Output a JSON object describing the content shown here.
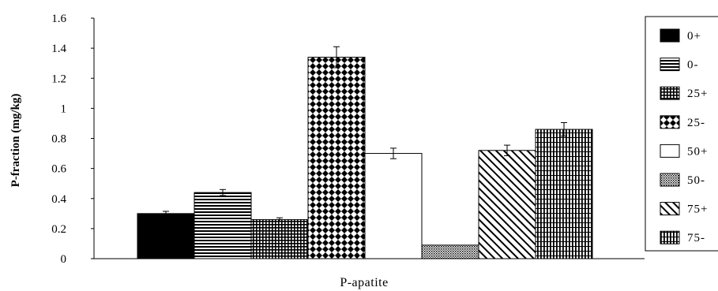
{
  "chart_data": {
    "type": "bar",
    "categories": [
      "P-apatite"
    ],
    "xlabel": "P-apatite",
    "ylabel": "P-fraction (mg/kg)",
    "ylim": [
      0,
      1.6
    ],
    "yticks": [
      "0",
      "0.2",
      "0.4",
      "0.6",
      "0.8",
      "1",
      "1.2",
      "1.4",
      "1.6"
    ],
    "grid": false,
    "legend_position": "right",
    "error_bars": true,
    "series": [
      {
        "name": "0+",
        "values": [
          0.3
        ],
        "error": [
          0.015
        ],
        "pattern": "solid-black"
      },
      {
        "name": "0-",
        "values": [
          0.44
        ],
        "error": [
          0.02
        ],
        "pattern": "horizontal-lines"
      },
      {
        "name": "25+",
        "values": [
          0.26
        ],
        "error": [
          0.012
        ],
        "pattern": "fine-grid"
      },
      {
        "name": "25-",
        "values": [
          1.34
        ],
        "error": [
          0.07
        ],
        "pattern": "diamond-checker"
      },
      {
        "name": "50+",
        "values": [
          0.7
        ],
        "error": [
          0.035
        ],
        "pattern": "white"
      },
      {
        "name": "50-",
        "values": [
          0.09
        ],
        "error": [
          0.0
        ],
        "pattern": "fine-dots"
      },
      {
        "name": "75+",
        "values": [
          0.72
        ],
        "error": [
          0.035
        ],
        "pattern": "diagonal-lines"
      },
      {
        "name": "75-",
        "values": [
          0.86
        ],
        "error": [
          0.045
        ],
        "pattern": "vertical-lines"
      }
    ]
  }
}
